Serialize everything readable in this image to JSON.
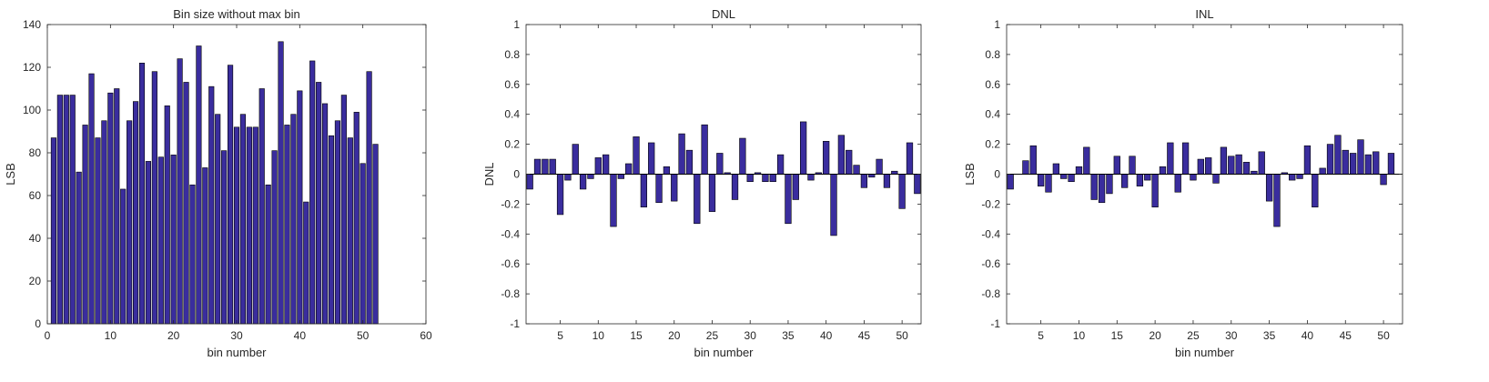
{
  "colors": {
    "bar_fill": "#3a2d9e",
    "bar_edge": "#000000",
    "axis": "#262626",
    "background": "#ffffff"
  },
  "chart_data": [
    {
      "type": "bar",
      "title": "Bin size without max bin",
      "xlabel": "bin number",
      "ylabel": "LSB",
      "xlim": [
        0,
        60
      ],
      "ylim": [
        0,
        140
      ],
      "xticks": [
        0,
        10,
        20,
        30,
        40,
        50,
        60
      ],
      "yticks": [
        0,
        20,
        40,
        60,
        80,
        100,
        120,
        140
      ],
      "x": [
        1,
        2,
        3,
        4,
        5,
        6,
        7,
        8,
        9,
        10,
        11,
        12,
        13,
        14,
        15,
        16,
        17,
        18,
        19,
        20,
        21,
        22,
        23,
        24,
        25,
        26,
        27,
        28,
        29,
        30,
        31,
        32,
        33,
        34,
        35,
        36,
        37,
        38,
        39,
        40,
        41,
        42,
        43,
        44,
        45,
        46,
        47,
        48,
        49,
        50,
        51,
        52
      ],
      "values": [
        87,
        107,
        107,
        107,
        71,
        93,
        117,
        87,
        95,
        108,
        110,
        63,
        95,
        104,
        122,
        76,
        118,
        78,
        102,
        79,
        124,
        113,
        65,
        130,
        73,
        111,
        98,
        81,
        121,
        92,
        98,
        92,
        92,
        110,
        65,
        81,
        132,
        93,
        98,
        109,
        57,
        123,
        113,
        103,
        88,
        95,
        107,
        87,
        99,
        75,
        118,
        84
      ],
      "baseline_line": false,
      "grid": false
    },
    {
      "type": "bar",
      "title": "DNL",
      "xlabel": "bin number",
      "ylabel": "DNL",
      "xlim": [
        0.5,
        52.5
      ],
      "ylim": [
        -1,
        1
      ],
      "xticks": [
        5,
        10,
        15,
        20,
        25,
        30,
        35,
        40,
        45,
        50
      ],
      "yticks": [
        -1,
        -0.8,
        -0.6,
        -0.4,
        -0.2,
        0,
        0.2,
        0.4,
        0.6,
        0.8,
        1
      ],
      "x": [
        1,
        2,
        3,
        4,
        5,
        6,
        7,
        8,
        9,
        10,
        11,
        12,
        13,
        14,
        15,
        16,
        17,
        18,
        19,
        20,
        21,
        22,
        23,
        24,
        25,
        26,
        27,
        28,
        29,
        30,
        31,
        32,
        33,
        34,
        35,
        36,
        37,
        38,
        39,
        40,
        41,
        42,
        43,
        44,
        45,
        46,
        47,
        48,
        49,
        50,
        51,
        52
      ],
      "values": [
        -0.1,
        0.1,
        0.1,
        0.1,
        -0.27,
        -0.04,
        0.2,
        -0.1,
        -0.03,
        0.11,
        0.13,
        -0.35,
        -0.03,
        0.07,
        0.25,
        -0.22,
        0.21,
        -0.19,
        0.05,
        -0.18,
        0.27,
        0.16,
        -0.33,
        0.33,
        -0.25,
        0.14,
        0.01,
        -0.17,
        0.24,
        -0.05,
        0.01,
        -0.05,
        -0.05,
        0.13,
        -0.33,
        -0.17,
        0.35,
        -0.04,
        0.01,
        0.22,
        -0.41,
        0.26,
        0.16,
        0.06,
        -0.09,
        -0.02,
        0.1,
        -0.09,
        0.02,
        -0.23,
        0.21,
        -0.13
      ],
      "baseline_line": true,
      "grid": false
    },
    {
      "type": "bar",
      "title": "INL",
      "xlabel": "bin number",
      "ylabel": "LSB",
      "xlim": [
        0.5,
        52.5
      ],
      "ylim": [
        -1,
        1
      ],
      "xticks": [
        5,
        10,
        15,
        20,
        25,
        30,
        35,
        40,
        45,
        50
      ],
      "yticks": [
        -1,
        -0.8,
        -0.6,
        -0.4,
        -0.2,
        0,
        0.2,
        0.4,
        0.6,
        0.8,
        1
      ],
      "x": [
        1,
        2,
        3,
        4,
        5,
        6,
        7,
        8,
        9,
        10,
        11,
        12,
        13,
        14,
        15,
        16,
        17,
        18,
        19,
        20,
        21,
        22,
        23,
        24,
        25,
        26,
        27,
        28,
        29,
        30,
        31,
        32,
        33,
        34,
        35,
        36,
        37,
        38,
        39,
        40,
        41,
        42,
        43,
        44,
        45,
        46,
        47,
        48,
        49,
        50,
        51,
        52
      ],
      "values": [
        -0.1,
        0,
        0.09,
        0.19,
        -0.08,
        -0.12,
        0.07,
        -0.03,
        -0.05,
        0.05,
        0.18,
        -0.17,
        -0.19,
        -0.13,
        0.12,
        -0.09,
        0.12,
        -0.08,
        -0.04,
        -0.22,
        0.05,
        0.21,
        -0.12,
        0.21,
        -0.04,
        0.1,
        0.11,
        -0.06,
        0.18,
        0.12,
        0.13,
        0.08,
        0.02,
        0.15,
        -0.18,
        -0.35,
        0.01,
        -0.04,
        -0.03,
        0.19,
        -0.22,
        0.04,
        0.2,
        0.26,
        0.16,
        0.14,
        0.23,
        0.13,
        0.15,
        -0.07,
        0.14,
        0
      ],
      "baseline_line": true,
      "grid": false
    }
  ]
}
